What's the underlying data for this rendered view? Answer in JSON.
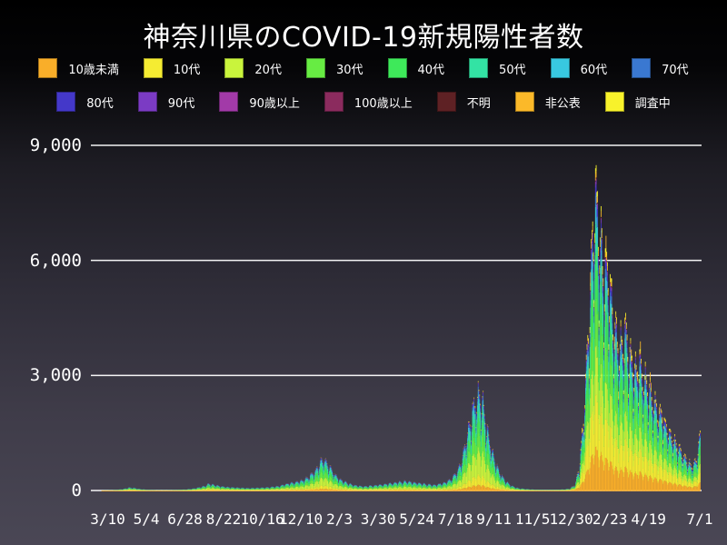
{
  "title": "神奈川県のCOVID-19新規陽性者数",
  "chart_data": {
    "type": "stacked_bar",
    "title": "神奈川県のCOVID-19新規陽性者数",
    "grid": true,
    "grid_color": "#FFFFFF",
    "text_color": "#FFFFFF",
    "legend_position": "top",
    "legend_row_split": 8,
    "ylim": [
      0,
      9400
    ],
    "x_range": [
      "2020-02-15",
      "2022-07-01"
    ],
    "bar_interval": "daily",
    "y_ticks": [
      {
        "value": 0,
        "label": "0"
      },
      {
        "value": 3000,
        "label": "3,000"
      },
      {
        "value": 6000,
        "label": "6,000"
      },
      {
        "value": 9000,
        "label": "9,000"
      }
    ],
    "x_ticks": [
      {
        "date": "2020-03-10",
        "label": "3/10"
      },
      {
        "date": "2020-05-04",
        "label": "5/4"
      },
      {
        "date": "2020-06-28",
        "label": "6/28"
      },
      {
        "date": "2020-08-22",
        "label": "8/22"
      },
      {
        "date": "2020-10-16",
        "label": "10/16"
      },
      {
        "date": "2020-12-10",
        "label": "12/10"
      },
      {
        "date": "2021-02-03",
        "label": "2/3"
      },
      {
        "date": "2021-03-30",
        "label": "3/30"
      },
      {
        "date": "2021-05-24",
        "label": "5/24"
      },
      {
        "date": "2021-07-18",
        "label": "7/18"
      },
      {
        "date": "2021-09-11",
        "label": "9/11"
      },
      {
        "date": "2021-11-05",
        "label": "11/5"
      },
      {
        "date": "2021-12-30",
        "label": "12/30"
      },
      {
        "date": "2022-02-23",
        "label": "2/23"
      },
      {
        "date": "2022-04-19",
        "label": "4/19"
      },
      {
        "date": "2022-07-01",
        "label": "7/1"
      }
    ],
    "age_groups": [
      {
        "label": "10歳未満",
        "color": "#F9AE29"
      },
      {
        "label": "10代",
        "color": "#F5EC32"
      },
      {
        "label": "20代",
        "color": "#C9F43C"
      },
      {
        "label": "30代",
        "color": "#67EC43"
      },
      {
        "label": "40代",
        "color": "#3EE95A"
      },
      {
        "label": "50代",
        "color": "#33E3A4"
      },
      {
        "label": "60代",
        "color": "#38C8E0"
      },
      {
        "label": "70代",
        "color": "#3A78D1"
      },
      {
        "label": "80代",
        "color": "#4438C9"
      },
      {
        "label": "90代",
        "color": "#7B3BC4"
      },
      {
        "label": "90歳以上",
        "color": "#A23AA8"
      },
      {
        "label": "100歳以上",
        "color": "#8B2B5E"
      },
      {
        "label": "不明",
        "color": "#5E2124"
      },
      {
        "label": "非公表",
        "color": "#FBB929"
      },
      {
        "label": "調査中",
        "color": "#F8F22B"
      }
    ],
    "age_share": {
      "era_2020_2021": [
        0.055,
        0.095,
        0.245,
        0.175,
        0.15,
        0.125,
        0.065,
        0.04,
        0.022,
        0.01,
        0.004,
        0.001,
        0.002,
        0.006,
        0.005
      ],
      "era_2022": [
        0.135,
        0.16,
        0.15,
        0.145,
        0.145,
        0.09,
        0.055,
        0.035,
        0.025,
        0.012,
        0.005,
        0.002,
        0.003,
        0.02,
        0.018
      ],
      "era_2022_start": "2021-12-25"
    },
    "series_total_keyframes": [
      [
        "2020-02-25",
        1
      ],
      [
        "2020-03-05",
        4
      ],
      [
        "2020-03-15",
        8
      ],
      [
        "2020-03-25",
        25
      ],
      [
        "2020-04-01",
        45
      ],
      [
        "2020-04-09",
        90
      ],
      [
        "2020-04-16",
        75
      ],
      [
        "2020-04-24",
        45
      ],
      [
        "2020-05-05",
        20
      ],
      [
        "2020-05-20",
        8
      ],
      [
        "2020-06-05",
        10
      ],
      [
        "2020-06-20",
        22
      ],
      [
        "2020-07-01",
        35
      ],
      [
        "2020-07-10",
        60
      ],
      [
        "2020-07-18",
        95
      ],
      [
        "2020-07-25",
        130
      ],
      [
        "2020-08-01",
        200
      ],
      [
        "2020-08-09",
        160
      ],
      [
        "2020-08-18",
        125
      ],
      [
        "2020-08-28",
        100
      ],
      [
        "2020-09-10",
        85
      ],
      [
        "2020-09-25",
        70
      ],
      [
        "2020-10-10",
        80
      ],
      [
        "2020-10-25",
        95
      ],
      [
        "2020-11-08",
        130
      ],
      [
        "2020-11-20",
        200
      ],
      [
        "2020-12-01",
        240
      ],
      [
        "2020-12-12",
        300
      ],
      [
        "2020-12-22",
        430
      ],
      [
        "2020-12-31",
        600
      ],
      [
        "2021-01-06",
        850
      ],
      [
        "2021-01-12",
        950
      ],
      [
        "2021-01-20",
        700
      ],
      [
        "2021-01-28",
        450
      ],
      [
        "2021-02-05",
        310
      ],
      [
        "2021-02-15",
        210
      ],
      [
        "2021-02-25",
        150
      ],
      [
        "2021-03-10",
        120
      ],
      [
        "2021-03-25",
        150
      ],
      [
        "2021-04-10",
        190
      ],
      [
        "2021-04-25",
        240
      ],
      [
        "2021-05-10",
        270
      ],
      [
        "2021-05-22",
        235
      ],
      [
        "2021-06-05",
        190
      ],
      [
        "2021-06-18",
        165
      ],
      [
        "2021-07-01",
        220
      ],
      [
        "2021-07-12",
        350
      ],
      [
        "2021-07-21",
        600
      ],
      [
        "2021-07-29",
        1100
      ],
      [
        "2021-08-05",
        1800
      ],
      [
        "2021-08-12",
        2450
      ],
      [
        "2021-08-19",
        2850
      ],
      [
        "2021-08-26",
        2500
      ],
      [
        "2021-09-02",
        1700
      ],
      [
        "2021-09-10",
        1000
      ],
      [
        "2021-09-18",
        550
      ],
      [
        "2021-09-26",
        300
      ],
      [
        "2021-10-05",
        140
      ],
      [
        "2021-10-15",
        70
      ],
      [
        "2021-10-28",
        40
      ],
      [
        "2021-11-10",
        24
      ],
      [
        "2021-11-24",
        18
      ],
      [
        "2021-12-08",
        24
      ],
      [
        "2021-12-20",
        34
      ],
      [
        "2021-12-28",
        60
      ],
      [
        "2022-01-04",
        180
      ],
      [
        "2022-01-10",
        700
      ],
      [
        "2022-01-15",
        1800
      ],
      [
        "2022-01-20",
        3600
      ],
      [
        "2022-01-26",
        6200
      ],
      [
        "2022-02-01",
        9100
      ],
      [
        "2022-02-05",
        8400
      ],
      [
        "2022-02-10",
        7200
      ],
      [
        "2022-02-15",
        6400
      ],
      [
        "2022-02-19",
        6900
      ],
      [
        "2022-02-24",
        5700
      ],
      [
        "2022-03-02",
        4800
      ],
      [
        "2022-03-09",
        4200
      ],
      [
        "2022-03-16",
        4800
      ],
      [
        "2022-03-23",
        4000
      ],
      [
        "2022-03-30",
        3500
      ],
      [
        "2022-04-06",
        3800
      ],
      [
        "2022-04-13",
        3300
      ],
      [
        "2022-04-20",
        2900
      ],
      [
        "2022-04-28",
        2500
      ],
      [
        "2022-05-06",
        2300
      ],
      [
        "2022-05-14",
        1900
      ],
      [
        "2022-05-22",
        1600
      ],
      [
        "2022-05-30",
        1300
      ],
      [
        "2022-06-07",
        1050
      ],
      [
        "2022-06-14",
        850
      ],
      [
        "2022-06-20",
        700
      ],
      [
        "2022-06-25",
        900
      ],
      [
        "2022-06-28",
        1200
      ],
      [
        "2022-07-01",
        1700
      ]
    ]
  }
}
